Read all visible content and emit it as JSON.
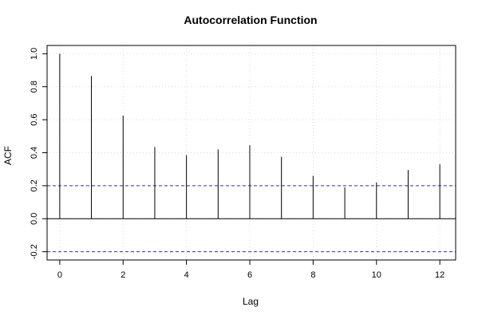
{
  "chart_data": {
    "type": "bar",
    "title": "Autocorrelation Function",
    "xlabel": "Lag",
    "ylabel": "ACF",
    "x": [
      0,
      1,
      2,
      3,
      4,
      5,
      6,
      7,
      8,
      9,
      10,
      11,
      12
    ],
    "values": [
      1.0,
      0.865,
      0.625,
      0.435,
      0.385,
      0.42,
      0.445,
      0.375,
      0.26,
      0.19,
      0.22,
      0.295,
      0.33
    ],
    "xlim": [
      -0.4,
      12.5
    ],
    "ylim": [
      -0.25,
      1.05
    ],
    "xticks": [
      0,
      2,
      4,
      6,
      8,
      10,
      12
    ],
    "yticks": [
      -0.2,
      0.0,
      0.2,
      0.4,
      0.6,
      0.8,
      1.0
    ],
    "xtick_labels": [
      "0",
      "2",
      "4",
      "6",
      "8",
      "10",
      "12"
    ],
    "ytick_labels": [
      "-0.2",
      "0.0",
      "0.2",
      "0.4",
      "0.6",
      "0.8",
      "1.0"
    ],
    "confidence_bounds": [
      0.2,
      -0.2
    ],
    "zero_line": 0,
    "grid": true,
    "colors": {
      "bars": "#000000",
      "confidence": "#3333aa",
      "grid": "#d9d9d9",
      "frame": "#000000"
    }
  }
}
